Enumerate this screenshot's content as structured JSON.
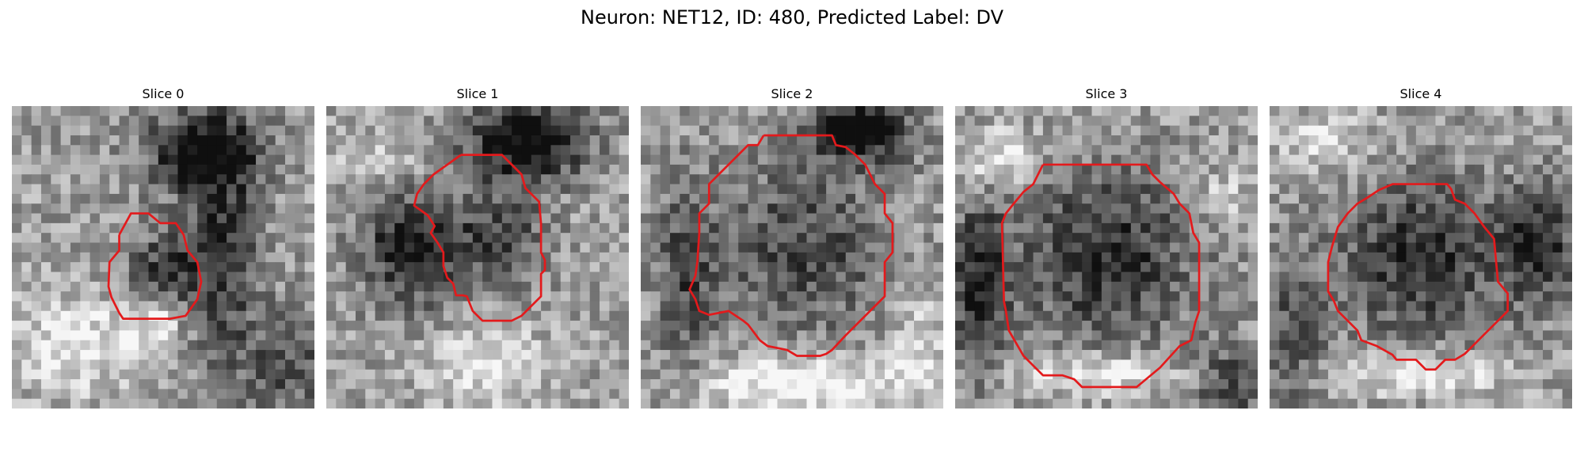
{
  "figure": {
    "title": "Neuron: NET12, ID: 480, Predicted Label: DV"
  },
  "panels": [
    {
      "title": "Slice 0"
    },
    {
      "title": "Slice 1"
    },
    {
      "title": "Slice 2"
    },
    {
      "title": "Slice 3"
    },
    {
      "title": "Slice 4"
    }
  ],
  "colors": {
    "contour": "#e31a1c",
    "background": "#ffffff"
  }
}
